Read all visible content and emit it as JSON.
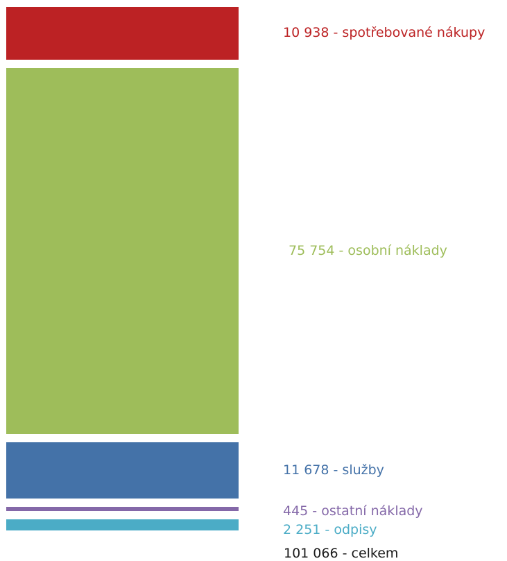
{
  "chart_data": {
    "type": "bar",
    "stacked": true,
    "categories": [
      "spotřebované nákupy",
      "osobní náklady",
      "služby",
      "ostatní náklady",
      "odpisy"
    ],
    "series": [
      {
        "label": "10 938 - spotřebované nákupy",
        "value": 10938,
        "color": "#bc2224"
      },
      {
        "label": "75 754 - osobní náklady",
        "value": 75754,
        "color": "#9ebd5a"
      },
      {
        "label": "11 678 - služby",
        "value": 11678,
        "color": "#4472a8"
      },
      {
        "label": "445 - ostatní náklady",
        "value": 445,
        "color": "#8468a8"
      },
      {
        "label": "2 251 - odpisy",
        "value": 2251,
        "color": "#4bacc6"
      }
    ],
    "total": {
      "label": "101 066 - celkem",
      "value": 101066
    }
  }
}
